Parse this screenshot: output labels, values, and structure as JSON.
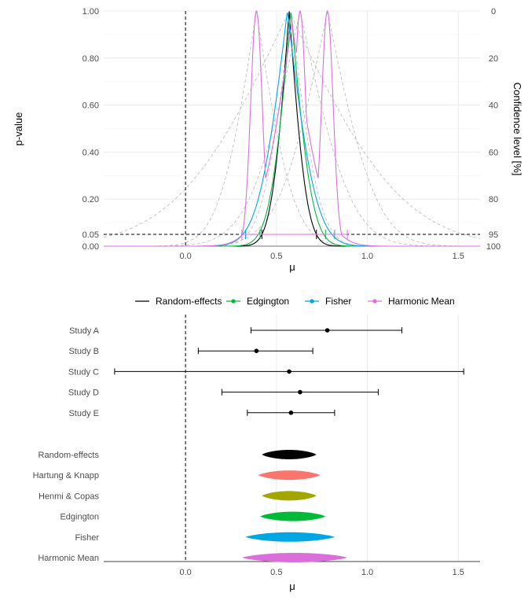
{
  "colors": {
    "random_effects": "#000000",
    "edgington": "#00BA38",
    "fisher": "#00A5E3",
    "harmonic_mean": "#DA6FDC",
    "hartung_knapp": "#F8766D",
    "henmi_copas": "#A3A500",
    "individual_study_curves": "#b8b8b8",
    "grid": "#ebebeb"
  },
  "chart_data": [
    {
      "type": "line",
      "title": "",
      "xlabel": "μ",
      "ylabel": "p-value",
      "ylabel_right": "Confidence level [%]",
      "xlim": [
        -0.45,
        1.62
      ],
      "ylim": [
        0,
        1
      ],
      "x_ticks": [
        0.0,
        0.5,
        1.0,
        1.5
      ],
      "x_tick_labels": [
        "0.0",
        "0.5",
        "1.0",
        "1.5"
      ],
      "y_ticks": [
        0.0,
        0.05,
        0.2,
        0.4,
        0.6,
        0.8,
        1.0
      ],
      "y_tick_labels": [
        "0.00",
        "0.05",
        "0.20",
        "0.40",
        "0.60",
        "0.80",
        "1.00"
      ],
      "y_right_ticks": [
        100,
        95,
        80,
        60,
        40,
        20,
        0
      ],
      "reference_lines": {
        "vertical_x": 0,
        "horizontal_y": 0.05
      },
      "grid": true,
      "legend_position": "bottom",
      "legend": [
        "Random-effects",
        "Edgington",
        "Fisher",
        "Harmonic Mean"
      ],
      "studies": [
        {
          "name": "Study A",
          "estimate": 0.78,
          "lower": 0.36,
          "upper": 1.19
        },
        {
          "name": "Study B",
          "estimate": 0.39,
          "lower": 0.07,
          "upper": 0.7
        },
        {
          "name": "Study C",
          "estimate": 0.57,
          "lower": -0.39,
          "upper": 1.53
        },
        {
          "name": "Study D",
          "estimate": 0.63,
          "lower": 0.2,
          "upper": 1.06
        },
        {
          "name": "Study E",
          "estimate": 0.58,
          "lower": 0.34,
          "upper": 0.82
        }
      ],
      "series": [
        {
          "name": "Random-effects",
          "estimate": 0.57,
          "ci95": [
            0.42,
            0.72
          ]
        },
        {
          "name": "Edgington",
          "estimate": 0.58,
          "ci95": [
            0.41,
            0.77
          ]
        },
        {
          "name": "Fisher",
          "estimate": 0.56,
          "ci95": [
            0.33,
            0.82
          ]
        },
        {
          "name": "Harmonic Mean",
          "peaks": [
            0.39,
            0.63,
            0.78
          ],
          "ci95": [
            0.31,
            0.89
          ]
        }
      ]
    },
    {
      "type": "forest",
      "xlabel": "μ",
      "xlim": [
        -0.45,
        1.62
      ],
      "x_ticks": [
        0.0,
        0.5,
        1.0,
        1.5
      ],
      "x_tick_labels": [
        "0.0",
        "0.5",
        "1.0",
        "1.5"
      ],
      "reference_line_x": 0,
      "studies": [
        {
          "label": "Study A",
          "estimate": 0.78,
          "lower": 0.36,
          "upper": 1.19
        },
        {
          "label": "Study B",
          "estimate": 0.39,
          "lower": 0.07,
          "upper": 0.7
        },
        {
          "label": "Study C",
          "estimate": 0.57,
          "lower": -0.39,
          "upper": 1.53
        },
        {
          "label": "Study D",
          "estimate": 0.63,
          "lower": 0.2,
          "upper": 1.06
        },
        {
          "label": "Study E",
          "estimate": 0.58,
          "lower": 0.34,
          "upper": 0.82
        }
      ],
      "summaries": [
        {
          "label": "Random-effects",
          "color_key": "random_effects",
          "lower": 0.42,
          "upper": 0.72
        },
        {
          "label": "Hartung & Knapp",
          "color_key": "hartung_knapp",
          "lower": 0.4,
          "upper": 0.74
        },
        {
          "label": "Henmi & Copas",
          "color_key": "henmi_copas",
          "lower": 0.42,
          "upper": 0.72
        },
        {
          "label": "Edgington",
          "color_key": "edgington",
          "lower": 0.41,
          "upper": 0.77
        },
        {
          "label": "Fisher",
          "color_key": "fisher",
          "lower": 0.33,
          "upper": 0.82
        },
        {
          "label": "Harmonic Mean",
          "color_key": "harmonic_mean",
          "lower": 0.31,
          "upper": 0.89
        }
      ]
    }
  ]
}
